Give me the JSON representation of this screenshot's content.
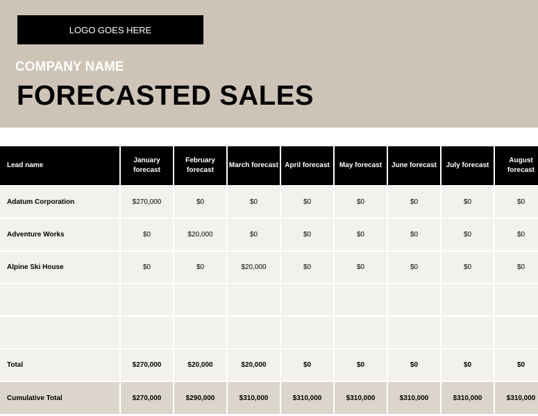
{
  "header": {
    "logo": "LOGO GOES HERE",
    "company": "COMPANY NAME",
    "title": "FORECASTED SALES"
  },
  "table": {
    "columns": [
      "Lead name",
      "January forecast",
      "February forecast",
      "March forecast",
      "April forecast",
      "May forecast",
      "June forecast",
      "July forecast",
      "August forecast"
    ],
    "rows": [
      [
        "Adatum Corporation",
        "$270,000",
        "$0",
        "$0",
        "$0",
        "$0",
        "$0",
        "$0",
        "$0"
      ],
      [
        "Adventure Works",
        "$0",
        "$20,000",
        "$0",
        "$0",
        "$0",
        "$0",
        "$0",
        "$0"
      ],
      [
        "Alpine Ski House",
        "$0",
        "$0",
        "$20,000",
        "$0",
        "$0",
        "$0",
        "$0",
        "$0"
      ]
    ],
    "total": [
      "Total",
      "$270,000",
      "$20,000",
      "$20,000",
      "$0",
      "$0",
      "$0",
      "$0",
      "$0"
    ],
    "cumulative": [
      "Cumulative Total",
      "$270,000",
      "$290,000",
      "$310,000",
      "$310,000",
      "$310,000",
      "$310,000",
      "$310,000",
      "$310,000"
    ]
  }
}
